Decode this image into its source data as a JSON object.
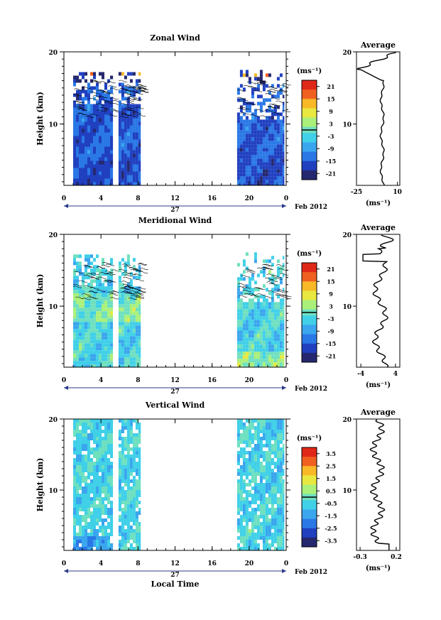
{
  "chart_data": [
    {
      "type": "heatmap",
      "title": "Zonal Wind",
      "xlabel": "",
      "ylabel": "Height (km)",
      "xlim": [
        0,
        24
      ],
      "ylim": [
        1.5,
        20
      ],
      "xticks": [
        "0",
        "4",
        "8",
        "12",
        "16",
        "20",
        "0"
      ],
      "yticks": [
        "10",
        "20"
      ],
      "date_labels": [
        "27",
        "Feb 2012"
      ],
      "colorbar": {
        "unit": "(ms⁻¹)",
        "range": [
          -24,
          24
        ],
        "ticks": [
          "21",
          "15",
          "9",
          "3",
          "-3",
          "-9",
          "-15",
          "-21"
        ]
      },
      "data_blocks_hours": [
        [
          1.0,
          5.3
        ],
        [
          5.9,
          8.3
        ],
        [
          18.7,
          23.8
        ]
      ],
      "average_profile": {
        "title": "Average",
        "xlabel": "(ms⁻¹)",
        "xlim": [
          -25,
          12
        ],
        "xticks": [
          "-25",
          "10"
        ],
        "yticks": [
          "10",
          "20"
        ]
      }
    },
    {
      "type": "heatmap",
      "title": "Meridional Wind",
      "xlabel": "",
      "ylabel": "Height (km)",
      "xlim": [
        0,
        24
      ],
      "ylim": [
        1.5,
        20
      ],
      "xticks": [
        "0",
        "4",
        "8",
        "12",
        "16",
        "20",
        "0"
      ],
      "yticks": [
        "10",
        "20"
      ],
      "date_labels": [
        "27",
        "Feb 2012"
      ],
      "colorbar": {
        "unit": "(ms⁻¹)",
        "range": [
          -24,
          24
        ],
        "ticks": [
          "21",
          "15",
          "9",
          "3",
          "-3",
          "-9",
          "-15",
          "-21"
        ]
      },
      "data_blocks_hours": [
        [
          1.0,
          5.3
        ],
        [
          5.9,
          8.3
        ],
        [
          18.7,
          23.8
        ]
      ],
      "average_profile": {
        "title": "Average",
        "xlabel": "(ms⁻¹)",
        "xlim": [
          -5,
          5
        ],
        "xticks": [
          "-4",
          "4"
        ],
        "yticks": [
          "10",
          "20"
        ]
      }
    },
    {
      "type": "heatmap",
      "title": "Vertical Wind",
      "xlabel": "Local Time",
      "ylabel": "Height (km)",
      "xlim": [
        0,
        24
      ],
      "ylim": [
        1.5,
        20
      ],
      "xticks": [
        "0",
        "4",
        "8",
        "12",
        "16",
        "20",
        "0"
      ],
      "yticks": [
        "10",
        "20"
      ],
      "date_labels": [
        "27",
        "Feb 2012"
      ],
      "colorbar": {
        "unit": "(ms⁻¹)",
        "range": [
          -4,
          4
        ],
        "ticks": [
          "3.5",
          "2.5",
          "1.5",
          "0.5",
          "-0.5",
          "-1.5",
          "-2.5",
          "-3.5"
        ]
      },
      "data_blocks_hours": [
        [
          1.0,
          5.3
        ],
        [
          5.9,
          8.3
        ],
        [
          18.7,
          23.8
        ]
      ],
      "average_profile": {
        "title": "Average",
        "xlabel": "(ms⁻¹)",
        "xlim": [
          -0.35,
          0.25
        ],
        "xticks": [
          "-0.3",
          "0.2"
        ],
        "yticks": [
          "10",
          "20"
        ]
      }
    }
  ],
  "colors": {
    "ramp": [
      "#25286e",
      "#2040c0",
      "#2a78e6",
      "#3aa6ee",
      "#40d0e8",
      "#6ee0c0",
      "#aaf07a",
      "#e8e840",
      "#f8b828",
      "#f06020",
      "#e02818"
    ]
  }
}
